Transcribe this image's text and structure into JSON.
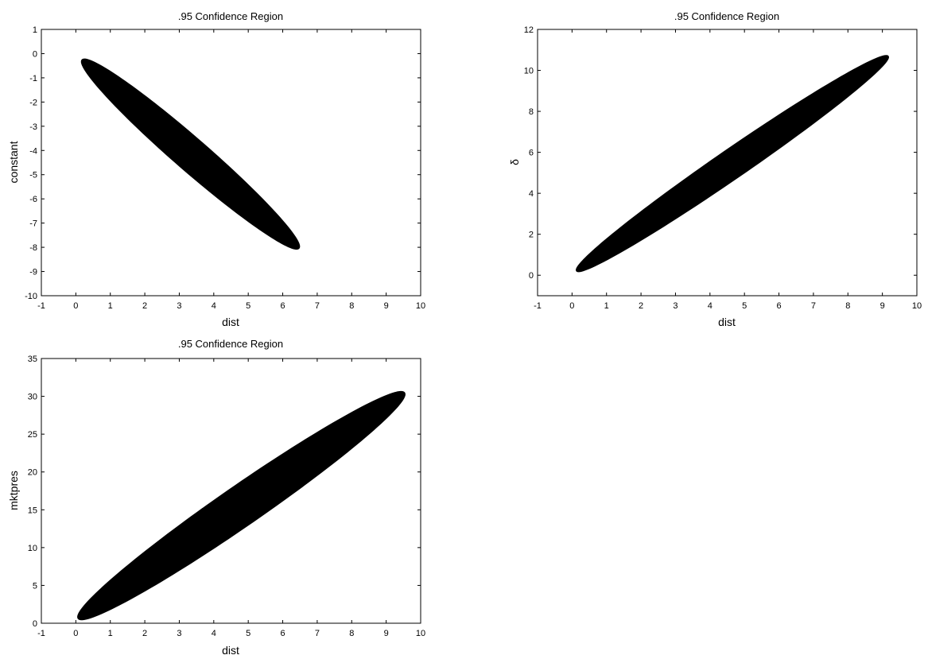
{
  "chart_data": [
    {
      "type": "area",
      "title": ".95 Confidence Region",
      "xlabel": "dist",
      "ylabel": "constant",
      "xlim": [
        -1,
        10
      ],
      "ylim": [
        -10,
        1
      ],
      "xticks": [
        -1,
        0,
        1,
        2,
        3,
        4,
        5,
        6,
        7,
        8,
        9,
        10
      ],
      "yticks": [
        -10,
        -9,
        -8,
        -7,
        -6,
        -5,
        -4,
        -3,
        -2,
        -1,
        0,
        1
      ],
      "grid": false,
      "region": {
        "shape": "ellipse",
        "color": "#000000",
        "endpoints": [
          [
            0.2,
            -0.25
          ],
          [
            6.45,
            -8.05
          ]
        ],
        "half_width": 0.55
      }
    },
    {
      "type": "area",
      "title": ".95 Confidence Region",
      "xlabel": "dist",
      "ylabel": "δ",
      "xlim": [
        -1,
        10
      ],
      "ylim": [
        -1,
        12
      ],
      "xticks": [
        -1,
        0,
        1,
        2,
        3,
        4,
        5,
        6,
        7,
        8,
        9,
        10
      ],
      "yticks": [
        0,
        2,
        4,
        6,
        8,
        10,
        12
      ],
      "grid": false,
      "region": {
        "shape": "ellipse",
        "color": "#000000",
        "endpoints": [
          [
            0.15,
            0.2
          ],
          [
            9.15,
            10.7
          ]
        ],
        "half_width": 0.55
      }
    },
    {
      "type": "area",
      "title": ".95 Confidence Region",
      "xlabel": "dist",
      "ylabel": "mktpres",
      "xlim": [
        -1,
        10
      ],
      "ylim": [
        0,
        35
      ],
      "xticks": [
        -1,
        0,
        1,
        2,
        3,
        4,
        5,
        6,
        7,
        8,
        9,
        10
      ],
      "yticks": [
        0,
        5,
        10,
        15,
        20,
        25,
        30,
        35
      ],
      "grid": false,
      "region": {
        "shape": "ellipse",
        "color": "#000000",
        "endpoints": [
          [
            0.15,
            0.5
          ],
          [
            9.45,
            30.6
          ]
        ],
        "half_width": 0.95
      }
    }
  ]
}
